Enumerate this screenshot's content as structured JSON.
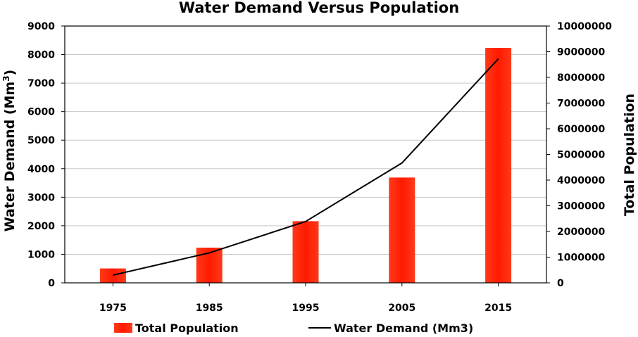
{
  "chart_data": {
    "type": "bar",
    "title": "Water Demand Versus Population",
    "categories": [
      "1975",
      "1985",
      "1995",
      "2005",
      "2015"
    ],
    "ylabel_left": "Water Demand (Mm",
    "ylabel_left_sup": "3",
    "ylabel_left_close": ")",
    "ylabel_right": "Total Population",
    "ylim_left": [
      0,
      9000
    ],
    "yticks_left": [
      0,
      1000,
      2000,
      3000,
      4000,
      5000,
      6000,
      7000,
      8000,
      9000
    ],
    "ylim_right": [
      0,
      10000000
    ],
    "yticks_right": [
      0,
      1000000,
      2000000,
      3000000,
      4000000,
      5000000,
      6000000,
      7000000,
      8000000,
      9000000,
      10000000
    ],
    "legend_position": "bottom",
    "series": [
      {
        "name": "Total Population",
        "type": "bar",
        "axis": "right",
        "color": "#ff2400",
        "values": [
          560000,
          1370000,
          2400000,
          4100000,
          9150000
        ]
      },
      {
        "name": "Water Demand (Mm3)",
        "type": "line",
        "axis": "left",
        "color": "#000000",
        "values": [
          270,
          1050,
          2150,
          4200,
          7850
        ]
      }
    ]
  }
}
